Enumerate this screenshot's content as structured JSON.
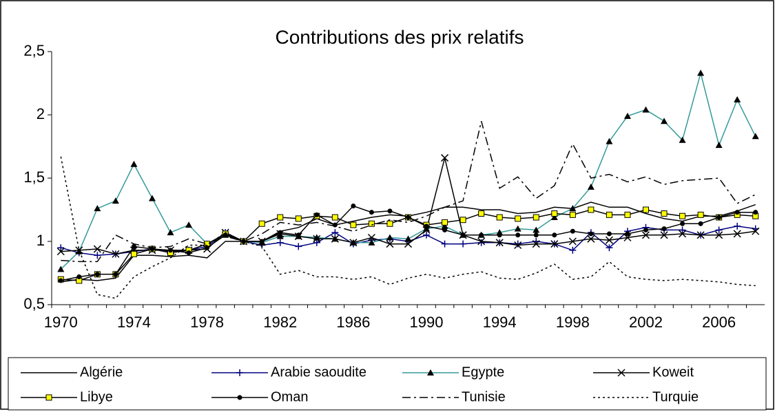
{
  "chart_data": {
    "type": "line",
    "title": "Contributions des prix relatifs",
    "categories": [
      "1970",
      null,
      null,
      null,
      "1974",
      null,
      null,
      null,
      "1978",
      null,
      null,
      null,
      "1982",
      null,
      null,
      null,
      "1986",
      null,
      null,
      null,
      "1990",
      null,
      null,
      null,
      "1994",
      null,
      null,
      null,
      "1998",
      null,
      null,
      null,
      "2002",
      null,
      null,
      null,
      "2006",
      null,
      null
    ],
    "ylim": [
      0.5,
      2.5
    ],
    "yticks": [
      {
        "value": 0.5,
        "label": "0,5"
      },
      1,
      {
        "value": 1.5,
        "label": "1,5"
      },
      2,
      {
        "value": 2.5,
        "label": "2,5"
      }
    ],
    "grid": false,
    "legend": "bottom",
    "series": [
      {
        "name": "Algérie",
        "color": "#000000",
        "dash": "solid",
        "marker": "none",
        "values": [
          0.68,
          0.7,
          0.69,
          0.71,
          0.89,
          0.89,
          0.88,
          0.89,
          0.87,
          1.0,
          1.0,
          1.0,
          1.08,
          1.11,
          1.18,
          1.13,
          1.16,
          1.19,
          1.21,
          1.2,
          1.23,
          1.27,
          1.27,
          1.25,
          1.25,
          1.22,
          1.23,
          1.27,
          1.26,
          1.31,
          1.27,
          1.27,
          1.22,
          1.18,
          1.16,
          1.2,
          1.2,
          1.24,
          1.29
        ]
      },
      {
        "name": "Arabie saoudite",
        "color": "#000080",
        "dash": "solid",
        "marker": "plus",
        "values": [
          0.95,
          0.91,
          0.89,
          0.9,
          0.92,
          0.94,
          0.92,
          0.93,
          0.96,
          1.07,
          1.0,
          0.97,
          0.99,
          0.96,
          0.99,
          1.07,
          0.98,
          1.01,
          1.02,
          1.0,
          1.05,
          0.98,
          0.98,
          0.99,
          0.99,
          0.98,
          1.0,
          0.98,
          0.93,
          1.07,
          0.95,
          1.08,
          1.11,
          1.09,
          1.09,
          1.05,
          1.09,
          1.12,
          1.1
        ]
      },
      {
        "name": "Egypte",
        "color": "#339999",
        "dash": "solid",
        "marker": "triangle",
        "values": [
          0.78,
          0.92,
          1.26,
          1.32,
          1.61,
          1.34,
          1.07,
          1.13,
          0.98,
          1.05,
          1.0,
          0.99,
          1.04,
          1.04,
          1.03,
          1.02,
          0.99,
          0.99,
          1.03,
          1.02,
          1.1,
          1.12,
          1.05,
          1.05,
          1.07,
          1.1,
          1.09,
          1.19,
          1.26,
          1.43,
          1.79,
          1.99,
          2.04,
          1.95,
          1.8,
          2.33,
          1.76,
          2.12,
          1.83
        ]
      },
      {
        "name": "Koweit",
        "color": "#000000",
        "dash": "solid",
        "marker": "cross",
        "values": [
          0.92,
          0.93,
          0.94,
          0.9,
          0.93,
          0.93,
          0.93,
          0.93,
          0.94,
          1.07,
          1.0,
          1.0,
          1.06,
          1.04,
          1.02,
          1.02,
          0.99,
          1.03,
          0.98,
          0.98,
          1.09,
          1.66,
          1.05,
          1.0,
          0.99,
          0.97,
          0.98,
          0.98,
          1.0,
          1.02,
          1.01,
          1.03,
          1.05,
          1.05,
          1.06,
          1.05,
          1.05,
          1.06,
          1.08
        ]
      },
      {
        "name": "Libye",
        "color": "#000000",
        "dash": "solid",
        "marker": "square",
        "values": [
          0.7,
          0.69,
          0.74,
          0.74,
          0.9,
          0.94,
          0.91,
          0.93,
          0.98,
          1.06,
          1.0,
          1.14,
          1.19,
          1.18,
          1.2,
          1.19,
          1.13,
          1.14,
          1.14,
          1.19,
          1.13,
          1.15,
          1.17,
          1.22,
          1.19,
          1.18,
          1.19,
          1.22,
          1.21,
          1.25,
          1.21,
          1.21,
          1.25,
          1.22,
          1.2,
          1.21,
          1.19,
          1.21,
          1.2
        ]
      },
      {
        "name": "Oman",
        "color": "#000000",
        "dash": "solid",
        "marker": "circle",
        "values": [
          0.69,
          0.72,
          0.74,
          0.74,
          0.96,
          0.94,
          0.93,
          0.91,
          0.95,
          1.05,
          1.0,
          1.0,
          1.07,
          1.05,
          1.21,
          1.13,
          1.28,
          1.23,
          1.24,
          1.19,
          1.12,
          1.09,
          1.05,
          1.05,
          1.05,
          1.05,
          1.05,
          1.05,
          1.08,
          1.06,
          1.06,
          1.06,
          1.09,
          1.1,
          1.14,
          1.14,
          1.19,
          1.23,
          1.23
        ]
      },
      {
        "name": "Tunisie",
        "color": "#000000",
        "dash": "dashdot",
        "marker": "none",
        "values": [
          0.85,
          0.84,
          0.84,
          1.05,
          0.98,
          0.95,
          0.96,
          1.02,
          0.98,
          1.04,
          1.0,
          1.06,
          1.15,
          1.13,
          1.15,
          1.12,
          1.08,
          1.13,
          1.17,
          1.15,
          1.2,
          1.27,
          1.32,
          1.95,
          1.42,
          1.51,
          1.34,
          1.44,
          1.77,
          1.5,
          1.53,
          1.47,
          1.51,
          1.45,
          1.48,
          1.49,
          1.5,
          1.3,
          1.37
        ]
      },
      {
        "name": "Turquie",
        "color": "#000000",
        "dash": "dotted",
        "marker": "none",
        "values": [
          1.67,
          0.93,
          0.58,
          0.55,
          0.72,
          0.8,
          0.87,
          0.97,
          0.97,
          1.07,
          1.0,
          0.96,
          0.74,
          0.77,
          0.72,
          0.72,
          0.7,
          0.72,
          0.66,
          0.71,
          0.74,
          0.71,
          0.74,
          0.76,
          0.71,
          0.7,
          0.75,
          0.82,
          0.7,
          0.72,
          0.84,
          0.72,
          0.7,
          0.69,
          0.7,
          0.69,
          0.68,
          0.66,
          0.65
        ]
      }
    ]
  }
}
